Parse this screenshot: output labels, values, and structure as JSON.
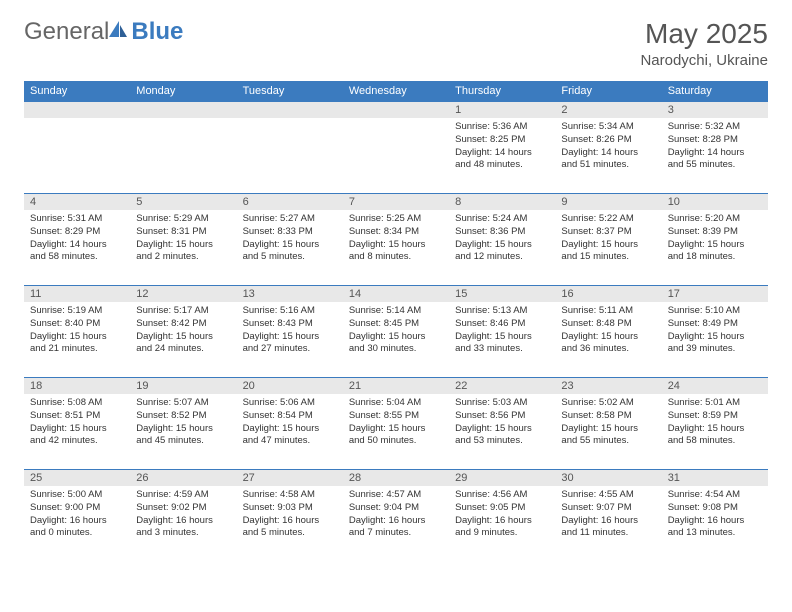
{
  "brand": {
    "part1": "General",
    "part2": "Blue"
  },
  "header": {
    "month_title": "May 2025",
    "location": "Narodychi, Ukraine"
  },
  "colors": {
    "accent": "#3b7bbf",
    "daynum_bg": "#e8e8e8",
    "text": "#333333",
    "header_text": "#555555",
    "background": "#ffffff"
  },
  "calendar": {
    "weekdays": [
      "Sunday",
      "Monday",
      "Tuesday",
      "Wednesday",
      "Thursday",
      "Friday",
      "Saturday"
    ],
    "first_weekday_index": 4,
    "days": [
      {
        "n": 1,
        "sunrise": "5:36 AM",
        "sunset": "8:25 PM",
        "dl_h": 14,
        "dl_m": 48
      },
      {
        "n": 2,
        "sunrise": "5:34 AM",
        "sunset": "8:26 PM",
        "dl_h": 14,
        "dl_m": 51
      },
      {
        "n": 3,
        "sunrise": "5:32 AM",
        "sunset": "8:28 PM",
        "dl_h": 14,
        "dl_m": 55
      },
      {
        "n": 4,
        "sunrise": "5:31 AM",
        "sunset": "8:29 PM",
        "dl_h": 14,
        "dl_m": 58
      },
      {
        "n": 5,
        "sunrise": "5:29 AM",
        "sunset": "8:31 PM",
        "dl_h": 15,
        "dl_m": 2
      },
      {
        "n": 6,
        "sunrise": "5:27 AM",
        "sunset": "8:33 PM",
        "dl_h": 15,
        "dl_m": 5
      },
      {
        "n": 7,
        "sunrise": "5:25 AM",
        "sunset": "8:34 PM",
        "dl_h": 15,
        "dl_m": 8
      },
      {
        "n": 8,
        "sunrise": "5:24 AM",
        "sunset": "8:36 PM",
        "dl_h": 15,
        "dl_m": 12
      },
      {
        "n": 9,
        "sunrise": "5:22 AM",
        "sunset": "8:37 PM",
        "dl_h": 15,
        "dl_m": 15
      },
      {
        "n": 10,
        "sunrise": "5:20 AM",
        "sunset": "8:39 PM",
        "dl_h": 15,
        "dl_m": 18
      },
      {
        "n": 11,
        "sunrise": "5:19 AM",
        "sunset": "8:40 PM",
        "dl_h": 15,
        "dl_m": 21
      },
      {
        "n": 12,
        "sunrise": "5:17 AM",
        "sunset": "8:42 PM",
        "dl_h": 15,
        "dl_m": 24
      },
      {
        "n": 13,
        "sunrise": "5:16 AM",
        "sunset": "8:43 PM",
        "dl_h": 15,
        "dl_m": 27
      },
      {
        "n": 14,
        "sunrise": "5:14 AM",
        "sunset": "8:45 PM",
        "dl_h": 15,
        "dl_m": 30
      },
      {
        "n": 15,
        "sunrise": "5:13 AM",
        "sunset": "8:46 PM",
        "dl_h": 15,
        "dl_m": 33
      },
      {
        "n": 16,
        "sunrise": "5:11 AM",
        "sunset": "8:48 PM",
        "dl_h": 15,
        "dl_m": 36
      },
      {
        "n": 17,
        "sunrise": "5:10 AM",
        "sunset": "8:49 PM",
        "dl_h": 15,
        "dl_m": 39
      },
      {
        "n": 18,
        "sunrise": "5:08 AM",
        "sunset": "8:51 PM",
        "dl_h": 15,
        "dl_m": 42
      },
      {
        "n": 19,
        "sunrise": "5:07 AM",
        "sunset": "8:52 PM",
        "dl_h": 15,
        "dl_m": 45
      },
      {
        "n": 20,
        "sunrise": "5:06 AM",
        "sunset": "8:54 PM",
        "dl_h": 15,
        "dl_m": 47
      },
      {
        "n": 21,
        "sunrise": "5:04 AM",
        "sunset": "8:55 PM",
        "dl_h": 15,
        "dl_m": 50
      },
      {
        "n": 22,
        "sunrise": "5:03 AM",
        "sunset": "8:56 PM",
        "dl_h": 15,
        "dl_m": 53
      },
      {
        "n": 23,
        "sunrise": "5:02 AM",
        "sunset": "8:58 PM",
        "dl_h": 15,
        "dl_m": 55
      },
      {
        "n": 24,
        "sunrise": "5:01 AM",
        "sunset": "8:59 PM",
        "dl_h": 15,
        "dl_m": 58
      },
      {
        "n": 25,
        "sunrise": "5:00 AM",
        "sunset": "9:00 PM",
        "dl_h": 16,
        "dl_m": 0
      },
      {
        "n": 26,
        "sunrise": "4:59 AM",
        "sunset": "9:02 PM",
        "dl_h": 16,
        "dl_m": 3
      },
      {
        "n": 27,
        "sunrise": "4:58 AM",
        "sunset": "9:03 PM",
        "dl_h": 16,
        "dl_m": 5
      },
      {
        "n": 28,
        "sunrise": "4:57 AM",
        "sunset": "9:04 PM",
        "dl_h": 16,
        "dl_m": 7
      },
      {
        "n": 29,
        "sunrise": "4:56 AM",
        "sunset": "9:05 PM",
        "dl_h": 16,
        "dl_m": 9
      },
      {
        "n": 30,
        "sunrise": "4:55 AM",
        "sunset": "9:07 PM",
        "dl_h": 16,
        "dl_m": 11
      },
      {
        "n": 31,
        "sunrise": "4:54 AM",
        "sunset": "9:08 PM",
        "dl_h": 16,
        "dl_m": 13
      }
    ],
    "labels": {
      "sunrise": "Sunrise:",
      "sunset": "Sunset:",
      "daylight": "Daylight:",
      "hours": "hours",
      "and": "and",
      "minutes": "minutes."
    }
  }
}
